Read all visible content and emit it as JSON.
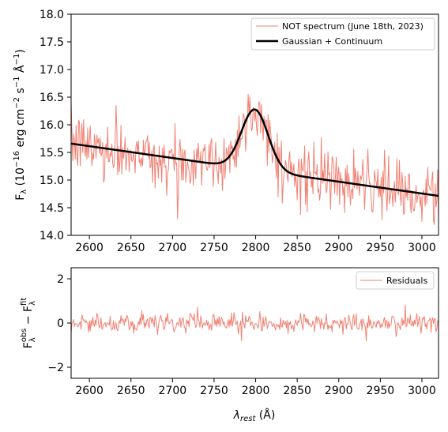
{
  "chart_data": [
    {
      "type": "line",
      "panel": "spectrum",
      "xlim": [
        2578,
        3020
      ],
      "ylim": [
        14.0,
        18.0
      ],
      "xticks": [
        2600,
        2650,
        2700,
        2750,
        2800,
        2850,
        2900,
        2950,
        3000
      ],
      "yticks": [
        14.0,
        14.5,
        15.0,
        15.5,
        16.0,
        16.5,
        17.0,
        17.5,
        18.0
      ],
      "ytick_labels": [
        "14.0",
        "14.5",
        "15.0",
        "15.5",
        "16.0",
        "16.5",
        "17.0",
        "17.5",
        "18.0"
      ],
      "ylabel": {
        "main": "F",
        "sub": "λ",
        "open": " (10",
        "sup1": "−16",
        "mid1": " erg cm",
        "sup2": "−2",
        "mid2": " s",
        "sup3": "−1",
        "mid3": " Å",
        "sup4": "−1",
        "close": ")"
      },
      "legend": {
        "position": "top-right",
        "entries": [
          {
            "label": "NOT spectrum (June 18th, 2023)",
            "color": "#f28072"
          },
          {
            "label": "Gaussian + Continuum",
            "color": "#000000"
          }
        ]
      },
      "series": [
        {
          "name": "NOT spectrum (June 18th, 2023)",
          "color": "#f28072",
          "kind": "noisy",
          "model": {
            "continuum_at_2578": 15.66,
            "continuum_slope_per_A": -0.00214,
            "gauss_amp": 1.09,
            "gauss_center": 2799,
            "gauss_sigma": 16,
            "noise_sd": 0.27,
            "x_start": 2578,
            "x_end": 3020,
            "x_step": 1
          }
        },
        {
          "name": "Gaussian + Continuum",
          "color": "#000000",
          "kind": "model",
          "model": {
            "continuum_at_2578": 15.66,
            "continuum_slope_per_A": -0.00214,
            "gauss_amp": 1.09,
            "gauss_center": 2799,
            "gauss_sigma": 16,
            "x_start": 2578,
            "x_end": 3020,
            "x_step": 1
          }
        }
      ]
    },
    {
      "type": "line",
      "panel": "residuals",
      "xlim": [
        2578,
        3020
      ],
      "ylim": [
        -2.5,
        2.5
      ],
      "xticks": [
        2600,
        2650,
        2700,
        2750,
        2800,
        2850,
        2900,
        2950,
        3000
      ],
      "yticks": [
        -2,
        0,
        2
      ],
      "ytick_labels": [
        "−2",
        "0",
        "2"
      ],
      "xlabel": {
        "main": "λ",
        "sub": "rest",
        "rest": " (Å)"
      },
      "ylabel": {
        "a": "F",
        "a_sub": "λ",
        "a_sup": "obs",
        "dash": " − ",
        "b": "F",
        "b_sub": "λ",
        "b_sup": "fit"
      },
      "legend": {
        "position": "top-right",
        "entries": [
          {
            "label": "Residuals",
            "color": "#f28072"
          }
        ]
      },
      "series": [
        {
          "name": "Residuals",
          "color": "#f28072",
          "kind": "noisy",
          "model": {
            "noise_sd": 0.22,
            "x_start": 2578,
            "x_end": 3020,
            "x_step": 1
          }
        }
      ]
    }
  ]
}
